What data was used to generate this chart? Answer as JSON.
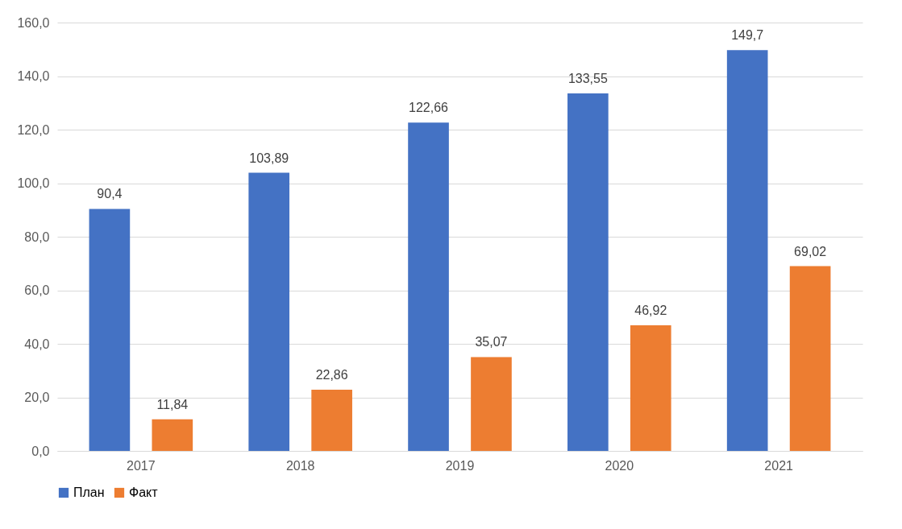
{
  "chart_data": {
    "type": "bar",
    "categories": [
      "2017",
      "2018",
      "2019",
      "2020",
      "2021"
    ],
    "series": [
      {
        "name": "План",
        "color": "#4472c4",
        "values": [
          90.4,
          103.89,
          122.66,
          133.55,
          149.7
        ],
        "value_labels": [
          "90,4",
          "103,89",
          "122,66",
          "133,55",
          "149,7"
        ]
      },
      {
        "name": "Факт",
        "color": "#ed7d31",
        "values": [
          11.84,
          22.86,
          35.07,
          46.92,
          69.02
        ],
        "value_labels": [
          "11,84",
          "22,86",
          "35,07",
          "46,92",
          "69,02"
        ]
      }
    ],
    "ylim": [
      0,
      160
    ],
    "yticks": [
      {
        "value": 0,
        "label": "0,0"
      },
      {
        "value": 20,
        "label": "20,0"
      },
      {
        "value": 40,
        "label": "40,0"
      },
      {
        "value": 60,
        "label": "60,0"
      },
      {
        "value": 80,
        "label": "80,0"
      },
      {
        "value": 100,
        "label": "100,0"
      },
      {
        "value": 120,
        "label": "120,0"
      },
      {
        "value": 140,
        "label": "140,0"
      },
      {
        "value": 160,
        "label": "160,0"
      }
    ],
    "grid": "y",
    "legend": "bottom"
  }
}
